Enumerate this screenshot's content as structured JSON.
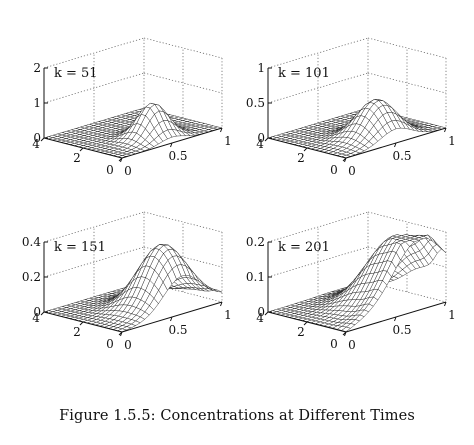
{
  "caption": "Figure 1.5.5: Concentrations at Different Times",
  "chart_data": [
    {
      "type": "surface",
      "title": "k = 51",
      "x_range": [
        0,
        1
      ],
      "y_range": [
        0,
        4
      ],
      "z_range": [
        0,
        2
      ],
      "x_ticks": [
        "0",
        "0.5",
        "1"
      ],
      "y_ticks": [
        "0",
        "2",
        "4"
      ],
      "z_ticks": [
        "0",
        "1",
        "2"
      ],
      "peak": {
        "x": 0.5,
        "y": 1.0,
        "z": 1.0
      }
    },
    {
      "type": "surface",
      "title": "k = 101",
      "x_range": [
        0,
        1
      ],
      "y_range": [
        0,
        4
      ],
      "z_range": [
        0,
        1
      ],
      "x_ticks": [
        "0",
        "0.5",
        "1"
      ],
      "y_ticks": [
        "0",
        "2",
        "4"
      ],
      "z_ticks": [
        "0",
        "0.5",
        "1"
      ],
      "peak": {
        "x": 0.5,
        "y": 1.0,
        "z": 0.55
      }
    },
    {
      "type": "surface",
      "title": "k = 151",
      "x_range": [
        0,
        1
      ],
      "y_range": [
        0,
        4
      ],
      "z_range": [
        0,
        0.4
      ],
      "x_ticks": [
        "0",
        "0.5",
        "1"
      ],
      "y_ticks": [
        "0",
        "2",
        "4"
      ],
      "z_ticks": [
        "0",
        "0.2",
        "0.4"
      ],
      "peak": {
        "x": 0.6,
        "y": 1.0,
        "z": 0.37
      }
    },
    {
      "type": "surface",
      "title": "k = 201",
      "x_range": [
        0,
        1
      ],
      "y_range": [
        0,
        4
      ],
      "z_range": [
        0,
        0.2
      ],
      "x_ticks": [
        "0",
        "0.5",
        "1"
      ],
      "y_ticks": [
        "0",
        "2",
        "4"
      ],
      "z_ticks": [
        "0",
        "0.1",
        "0.2"
      ],
      "peak": {
        "x": 0.7,
        "y": 1.0,
        "z": 0.2
      }
    }
  ]
}
